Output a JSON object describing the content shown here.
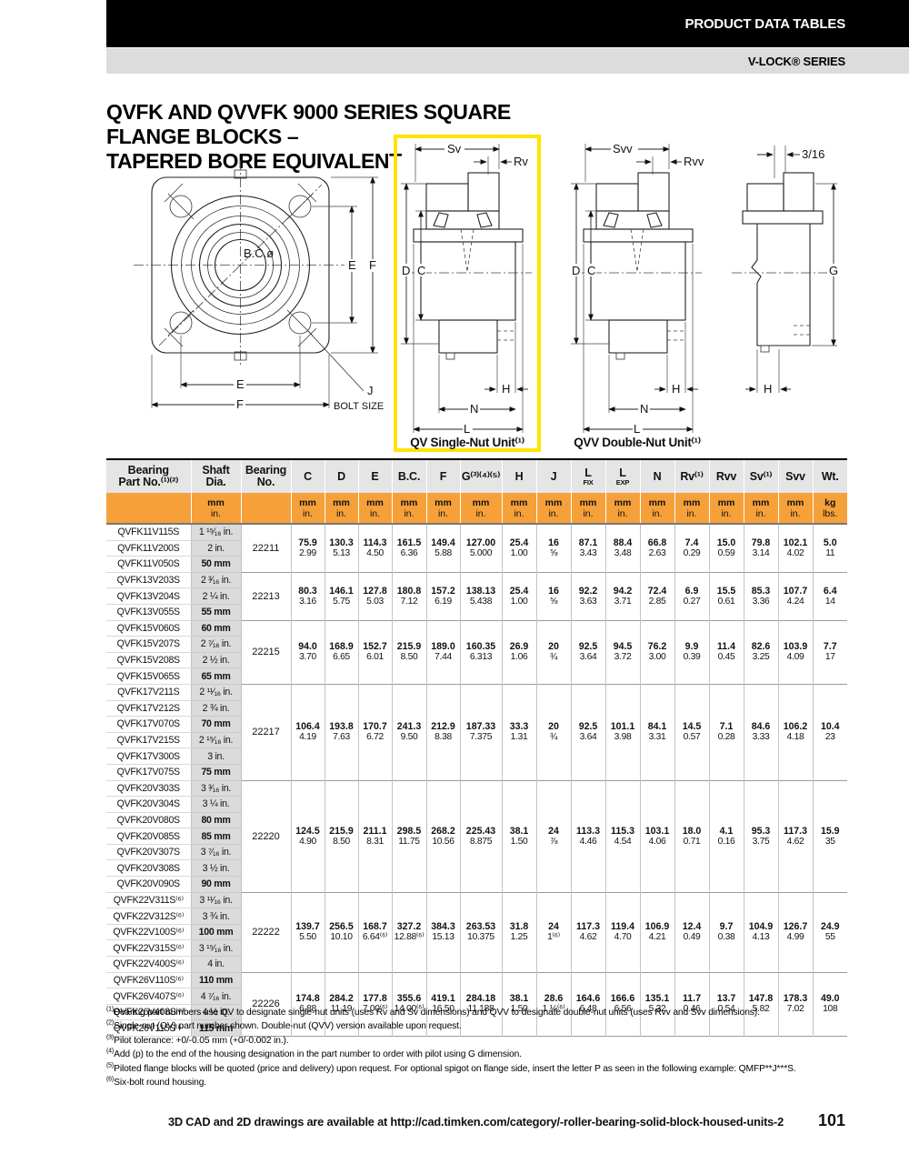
{
  "page": {
    "header_bar": "PRODUCT DATA TABLES",
    "series_bar": "V-LOCK® SERIES",
    "title_line1": "QVFK AND QVVFK 9000 SERIES SQUARE FLANGE BLOCKS –",
    "title_line2": "TAPERED BORE EQUIVALENT",
    "footer_text": "3D CAD and 2D drawings are available at http://cad.timken.com/category/-roller-bearing-solid-block-housed-units-2",
    "page_number": "101"
  },
  "colors": {
    "orange_band": "#F6A03A",
    "highlight_yellow": "#FFE400",
    "header_black": "#000000",
    "header_gray": "#DCDCDC"
  },
  "diagrams": {
    "front_view": {
      "bc": "B.C.ø",
      "e": "E",
      "f": "F",
      "j": "J",
      "bolt_size": "BOLT SIZE"
    },
    "qv_unit": {
      "caption": "QV Single-Nut Unit⁽¹⁾",
      "dim_sv": "Sv",
      "dim_rv": "Rv",
      "dim_d": "D",
      "dim_c": "C",
      "dim_h": "H",
      "dim_n": "N",
      "dim_l": "L"
    },
    "qvv_unit": {
      "caption": "QVV Double-Nut Unit⁽¹⁾",
      "dim_svv": "Svv",
      "dim_rvv": "Rvv",
      "dim_d": "D",
      "dim_c": "C",
      "dim_h": "H",
      "dim_n": "N",
      "dim_l": "L"
    },
    "pilot_view": {
      "dim_pilot": "3/16",
      "dim_g": "G",
      "dim_h": "H"
    }
  },
  "table": {
    "part_header": [
      "Bearing",
      "Part No.⁽¹⁾⁽²⁾"
    ],
    "shaft_header": [
      "Shaft",
      "Dia."
    ],
    "bearing_header": [
      "Bearing",
      "No."
    ],
    "units_default": [
      "mm",
      "in."
    ],
    "columns": [
      {
        "label": "C"
      },
      {
        "label": "D"
      },
      {
        "label": "E"
      },
      {
        "label": "B.C."
      },
      {
        "label": "F"
      },
      {
        "label": "G⁽³⁾⁽⁴⁾⁽⁵⁾"
      },
      {
        "label": "H"
      },
      {
        "label": "J"
      },
      {
        "label": "L",
        "sub": "FIX"
      },
      {
        "label": "L",
        "sub": "EXP"
      },
      {
        "label": "N"
      },
      {
        "label": "Rv⁽¹⁾"
      },
      {
        "label": "Rvv"
      },
      {
        "label": "Sv⁽¹⁾"
      },
      {
        "label": "Svv"
      },
      {
        "label": "Wt.",
        "units": [
          "kg",
          "lbs."
        ]
      }
    ],
    "groups": [
      {
        "bearing_no": "22211",
        "rows": [
          [
            "QVFK11V115S",
            "1 ¹⁵⁄₁₆ in."
          ],
          [
            "QVFK11V200S",
            "2 in."
          ],
          [
            "QVFK11V050S",
            "50 mm"
          ]
        ],
        "mm": [
          "75.9",
          "130.3",
          "114.3",
          "161.5",
          "149.4",
          "127.00",
          "25.4",
          "16",
          "87.1",
          "88.4",
          "66.8",
          "7.4",
          "15.0",
          "79.8",
          "102.1",
          "5.0"
        ],
        "in": [
          "2.99",
          "5.13",
          "4.50",
          "6.36",
          "5.88",
          "5.000",
          "1.00",
          "⅝",
          "3.43",
          "3.48",
          "2.63",
          "0.29",
          "0.59",
          "3.14",
          "4.02",
          "11"
        ]
      },
      {
        "bearing_no": "22213",
        "rows": [
          [
            "QVFK13V203S",
            "2 ³⁄₁₆ in."
          ],
          [
            "QVFK13V204S",
            "2 ¼ in."
          ],
          [
            "QVFK13V055S",
            "55 mm"
          ]
        ],
        "mm": [
          "80.3",
          "146.1",
          "127.8",
          "180.8",
          "157.2",
          "138.13",
          "25.4",
          "16",
          "92.2",
          "94.2",
          "72.4",
          "6.9",
          "15.5",
          "85.3",
          "107.7",
          "6.4"
        ],
        "in": [
          "3.16",
          "5.75",
          "5.03",
          "7.12",
          "6.19",
          "5.438",
          "1.00",
          "⅝",
          "3.63",
          "3.71",
          "2.85",
          "0.27",
          "0.61",
          "3.36",
          "4.24",
          "14"
        ]
      },
      {
        "bearing_no": "22215",
        "rows": [
          [
            "QVFK15V060S",
            "60 mm"
          ],
          [
            "QVFK15V207S",
            "2 ⁷⁄₁₆ in."
          ],
          [
            "QVFK15V208S",
            "2 ½ in."
          ],
          [
            "QVFK15V065S",
            "65 mm"
          ]
        ],
        "mm": [
          "94.0",
          "168.9",
          "152.7",
          "215.9",
          "189.0",
          "160.35",
          "26.9",
          "20",
          "92.5",
          "94.5",
          "76.2",
          "9.9",
          "11.4",
          "82.6",
          "103.9",
          "7.7"
        ],
        "in": [
          "3.70",
          "6.65",
          "6.01",
          "8.50",
          "7.44",
          "6.313",
          "1.06",
          "¾",
          "3.64",
          "3.72",
          "3.00",
          "0.39",
          "0.45",
          "3.25",
          "4.09",
          "17"
        ]
      },
      {
        "bearing_no": "22217",
        "rows": [
          [
            "QVFK17V211S",
            "2 ¹¹⁄₁₆ in."
          ],
          [
            "QVFK17V212S",
            "2 ¾ in."
          ],
          [
            "QVFK17V070S",
            "70 mm"
          ],
          [
            "QVFK17V215S",
            "2 ¹⁵⁄₁₆ in."
          ],
          [
            "QVFK17V300S",
            "3 in."
          ],
          [
            "QVFK17V075S",
            "75 mm"
          ]
        ],
        "mm": [
          "106.4",
          "193.8",
          "170.7",
          "241.3",
          "212.9",
          "187.33",
          "33.3",
          "20",
          "92.5",
          "101.1",
          "84.1",
          "14.5",
          "7.1",
          "84.6",
          "106.2",
          "10.4"
        ],
        "in": [
          "4.19",
          "7.63",
          "6.72",
          "9.50",
          "8.38",
          "7.375",
          "1.31",
          "¾",
          "3.64",
          "3.98",
          "3.31",
          "0.57",
          "0.28",
          "3.33",
          "4.18",
          "23"
        ]
      },
      {
        "bearing_no": "22220",
        "rows": [
          [
            "QVFK20V303S",
            "3 ³⁄₁₆ in."
          ],
          [
            "QVFK20V304S",
            "3 ¼ in."
          ],
          [
            "QVFK20V080S",
            "80 mm"
          ],
          [
            "QVFK20V085S",
            "85 mm"
          ],
          [
            "QVFK20V307S",
            "3 ⁷⁄₁₆ in."
          ],
          [
            "QVFK20V308S",
            "3 ½ in."
          ],
          [
            "QVFK20V090S",
            "90 mm"
          ]
        ],
        "mm": [
          "124.5",
          "215.9",
          "211.1",
          "298.5",
          "268.2",
          "225.43",
          "38.1",
          "24",
          "113.3",
          "115.3",
          "103.1",
          "18.0",
          "4.1",
          "95.3",
          "117.3",
          "15.9"
        ],
        "in": [
          "4.90",
          "8.50",
          "8.31",
          "11.75",
          "10.56",
          "8.875",
          "1.50",
          "⅞",
          "4.46",
          "4.54",
          "4.06",
          "0.71",
          "0.16",
          "3.75",
          "4.62",
          "35"
        ]
      },
      {
        "bearing_no": "22222",
        "rows": [
          [
            "QVFK22V311S⁽⁶⁾",
            "3 ¹¹⁄₁₆ in."
          ],
          [
            "QVFK22V312S⁽⁶⁾",
            "3 ¾ in."
          ],
          [
            "QVFK22V100S⁽⁶⁾",
            "100 mm"
          ],
          [
            "QVFK22V315S⁽⁶⁾",
            "3 ¹⁵⁄₁₆ in."
          ],
          [
            "QVFK22V400S⁽⁶⁾",
            "4 in."
          ]
        ],
        "mm": [
          "139.7",
          "256.5",
          "168.7",
          "327.2",
          "384.3",
          "263.53",
          "31.8",
          "24",
          "117.3",
          "119.4",
          "106.9",
          "12.4",
          "9.7",
          "104.9",
          "126.7",
          "24.9"
        ],
        "in": [
          "5.50",
          "10.10",
          "6.64⁽⁶⁾",
          "12.88⁽⁶⁾",
          "15.13",
          "10.375",
          "1.25",
          "1⁽⁶⁾",
          "4.62",
          "4.70",
          "4.21",
          "0.49",
          "0.38",
          "4.13",
          "4.99",
          "55"
        ]
      },
      {
        "bearing_no": "22226",
        "rows": [
          [
            "QVFK26V110S⁽⁶⁾",
            "110 mm"
          ],
          [
            "QVFK26V407S⁽⁶⁾",
            "4 ⁷⁄₁₆ in."
          ],
          [
            "QVFK26V408S⁽⁶⁾",
            "4 ½ in."
          ],
          [
            "QVFK26V115S⁽⁶⁾",
            "115 mm"
          ]
        ],
        "mm": [
          "174.8",
          "284.2",
          "177.8",
          "355.6",
          "419.1",
          "284.18",
          "38.1",
          "28.6",
          "164.6",
          "166.6",
          "135.1",
          "11.7",
          "13.7",
          "147.8",
          "178.3",
          "49.0"
        ],
        "in": [
          "6.88",
          "11.19",
          "7.00⁽⁶⁾",
          "14.00⁽⁶⁾",
          "16.50",
          "11.188",
          "1.50",
          "1 ⅛⁽⁶⁾",
          "6.48",
          "6.56",
          "5.32",
          "0.46",
          "0.54",
          "5.82",
          "7.02",
          "108"
        ]
      }
    ],
    "footnotes": [
      [
        "(1)",
        "Bearing part numbers use QV to designate single-nut units (uses Rv and Sv dimensions) and QVV to designate double-nut units (uses Rvv and Svv dimensions)."
      ],
      [
        "(2)",
        "Single-nut (QV) part number shown. Double-nut (QVV) version available upon request."
      ],
      [
        "(3)",
        "Pilot tolerance: +0/-0.05 mm (+0/-0.002 in.)."
      ],
      [
        "(4)",
        "Add (p) to the end of the housing designation in the part number to order with pilot using G dimension."
      ],
      [
        "(5)",
        "Piloted flange blocks will be quoted (price and delivery) upon request. For optional spigot on flange side, insert the letter P as seen in the following example: QMFP**J***S."
      ],
      [
        "(6)",
        "Six-bolt round housing."
      ]
    ]
  }
}
